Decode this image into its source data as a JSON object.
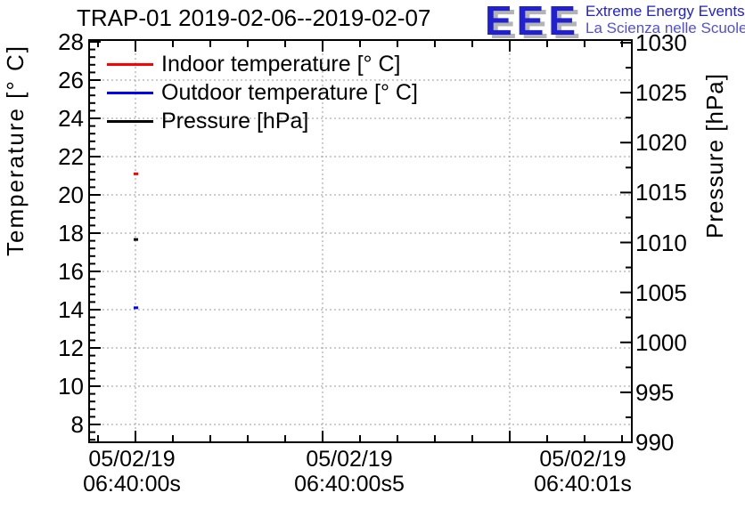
{
  "title": "TRAP-01 2019-02-06--2019-02-07",
  "logo": {
    "letters": "EEE",
    "tagline_line1": "Extreme Energy Events",
    "tagline_line2": "La Scienza nelle Scuole",
    "letters_color": "#2121d2",
    "tagline_line1_color": "#2121d2",
    "tagline_line2_color": "#5050dd",
    "shadow_color": "#b4b4b4"
  },
  "legend": {
    "items": [
      {
        "label": "Indoor temperature [° C]",
        "color": "#ff0000"
      },
      {
        "label": "Outdoor temperature [° C]",
        "color": "#0000ff"
      },
      {
        "label": "Pressure [hPa]",
        "color": "#000000"
      }
    ]
  },
  "axes": {
    "temperature": {
      "title": "Temperature [° C]",
      "tick_labels": [
        "28",
        "26",
        "24",
        "22",
        "20",
        "18",
        "16",
        "14",
        "12",
        "10",
        "8"
      ]
    },
    "pressure": {
      "title": "Pressure [hPa]",
      "tick_labels": [
        "1030",
        "1025",
        "1020",
        "1015",
        "1010",
        "1005",
        "1000",
        "995",
        "990"
      ]
    },
    "time": {
      "labels": [
        {
          "date": "05/02/19",
          "time": "06:40:00s"
        },
        {
          "date": "05/02/19",
          "time": "06:40:00s5"
        },
        {
          "date": "05/02/19",
          "time": "06:40:01s"
        }
      ]
    }
  },
  "chart_data": {
    "type": "line",
    "title": "TRAP-01 2019-02-06--2019-02-07",
    "x_tick_labels": [
      "05/02/19 06:40:00s",
      "05/02/19 06:40:00s5",
      "05/02/19 06:40:01s"
    ],
    "y_left": {
      "label": "Temperature [° C]",
      "range": [
        7,
        28
      ],
      "major_step": 2,
      "minor_step": 0.4
    },
    "y_right": {
      "label": "Pressure [hPa]",
      "range": [
        990,
        1030
      ],
      "major_step": 5,
      "minor_step": 2.5
    },
    "grid": true,
    "grid_color": "#999999",
    "axis_color": "#000000",
    "background_color": "#ffffff",
    "legend_position": "top-left-inside",
    "series": [
      {
        "name": "Indoor temperature [° C]",
        "color": "#ff0000",
        "axis": "left",
        "points": [
          {
            "x": "05/02/19 06:40:00",
            "y": 21.1
          }
        ]
      },
      {
        "name": "Outdoor temperature [° C]",
        "color": "#0000ff",
        "axis": "left",
        "points": [
          {
            "x": "05/02/19 06:40:00",
            "y": 14.1
          }
        ]
      },
      {
        "name": "Pressure [hPa]",
        "color": "#000000",
        "axis": "right",
        "points": [
          {
            "x": "05/02/19 06:40:00",
            "y": 1010.3
          }
        ]
      }
    ]
  }
}
